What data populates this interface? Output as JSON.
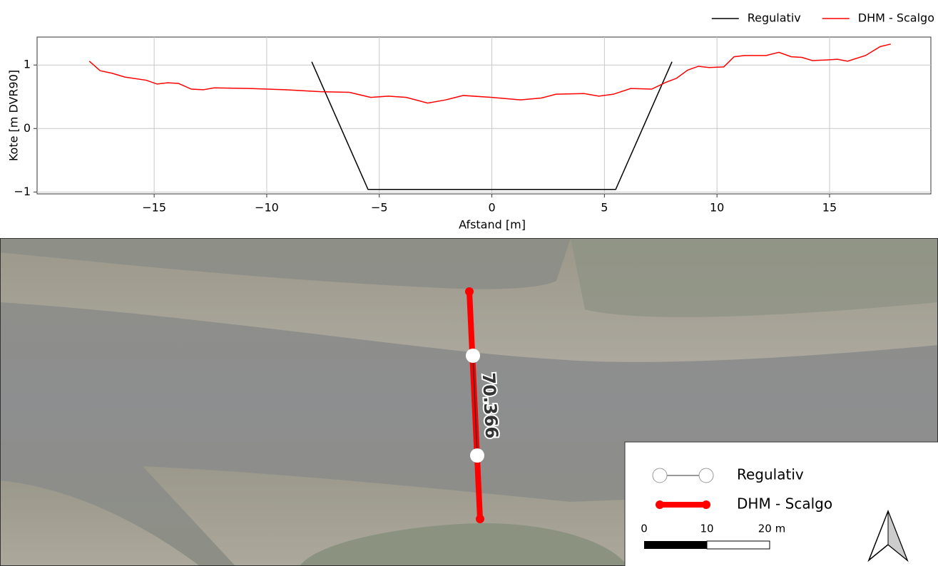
{
  "chart_data": {
    "type": "line",
    "xlabel": "Afstand [m]",
    "ylabel": "Kote [m DVR90]",
    "xlim": [
      -20.2,
      19.5
    ],
    "ylim": [
      -1.03,
      1.44
    ],
    "xticks": [
      {
        "value": -15,
        "label": "−15"
      },
      {
        "value": -10,
        "label": "−10"
      },
      {
        "value": -5,
        "label": "−5"
      },
      0,
      5,
      10,
      15
    ],
    "yticks": [
      {
        "value": -1,
        "label": "−1"
      },
      0,
      1
    ],
    "grid": true,
    "legend": "top-right",
    "series": [
      {
        "name": "Regulativ",
        "color": "#000000",
        "x": [
          -8,
          -5.5,
          5.5,
          8
        ],
        "values": [
          1.05,
          -0.96,
          -0.96,
          1.05
        ]
      },
      {
        "name": "DHM - Scalgo",
        "color": "#ff0000",
        "x": [
          -17.88,
          -17.4,
          -16.87,
          -16.3,
          -15.35,
          -14.87,
          -14.4,
          -13.92,
          -13.35,
          -12.82,
          -12.34,
          -10.76,
          -9.18,
          -7.6,
          -6.33,
          -5.38,
          -4.6,
          -3.8,
          -2.85,
          -2.06,
          -1.27,
          0,
          1.27,
          2.2,
          2.85,
          4.1,
          4.75,
          5.4,
          6.17,
          7.1,
          7.75,
          8.2,
          8.7,
          9.18,
          9.65,
          10.3,
          10.76,
          11.23,
          12.18,
          12.75,
          13.3,
          13.77,
          14.24,
          14.87,
          15.35,
          15.8,
          16.6,
          17.25,
          17.72
        ],
        "values": [
          1.06,
          0.91,
          0.87,
          0.81,
          0.76,
          0.7,
          0.72,
          0.71,
          0.62,
          0.61,
          0.64,
          0.63,
          0.61,
          0.58,
          0.57,
          0.49,
          0.51,
          0.49,
          0.4,
          0.45,
          0.52,
          0.49,
          0.45,
          0.48,
          0.54,
          0.55,
          0.51,
          0.54,
          0.63,
          0.62,
          0.73,
          0.79,
          0.92,
          0.98,
          0.96,
          0.97,
          1.13,
          1.15,
          1.15,
          1.2,
          1.13,
          1.12,
          1.07,
          1.08,
          1.09,
          1.06,
          1.15,
          1.29,
          1.33
        ]
      }
    ]
  },
  "map": {
    "label": "70.366",
    "legend": [
      "Regulativ",
      "DHM - Scalgo"
    ],
    "scale": [
      "0",
      "10",
      "20 m"
    ]
  }
}
